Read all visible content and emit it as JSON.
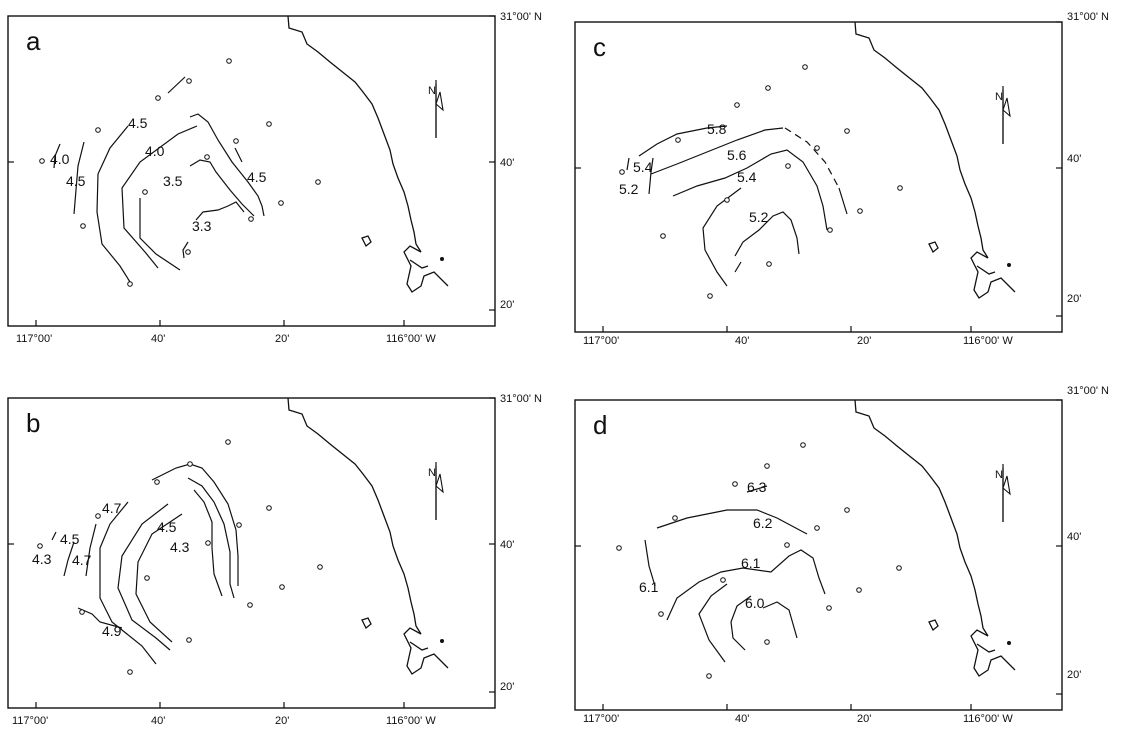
{
  "panels": [
    {
      "id": "a",
      "letter": "a",
      "north": "N",
      "lat_labels": [
        "31°00' N",
        "40'",
        "20'"
      ],
      "lon_labels": [
        "117°00'",
        "40'",
        "20'",
        "116°00' W"
      ],
      "contour_labels": [
        "4.0",
        "4.5",
        "4.5",
        "4.0",
        "3.5",
        "4.5",
        "3.3"
      ]
    },
    {
      "id": "b",
      "letter": "b",
      "north": "N",
      "lat_labels": [
        "31°00' N",
        "40'",
        "20'"
      ],
      "lon_labels": [
        "117°00'",
        "40'",
        "20'",
        "116°00' W"
      ],
      "contour_labels": [
        "4.5",
        "4.3",
        "4.7",
        "4.7",
        "4.5",
        "4.3",
        "4.9"
      ]
    },
    {
      "id": "c",
      "letter": "c",
      "north": "N",
      "lat_labels": [
        "31°00' N",
        "40'",
        "20'"
      ],
      "lon_labels": [
        "117°00'",
        "40'",
        "20'",
        "116°00' W"
      ],
      "contour_labels": [
        "5.4",
        "5.2",
        "5.8",
        "5.6",
        "5.4",
        "5.2"
      ]
    },
    {
      "id": "d",
      "letter": "d",
      "north": "N",
      "lat_labels": [
        "31°00' N",
        "40'",
        "20'"
      ],
      "lon_labels": [
        "117°00'",
        "40'",
        "20'",
        "116°00' W"
      ],
      "contour_labels": [
        "6.3",
        "6.2",
        "6.1",
        "6.1",
        "6.0"
      ]
    }
  ]
}
